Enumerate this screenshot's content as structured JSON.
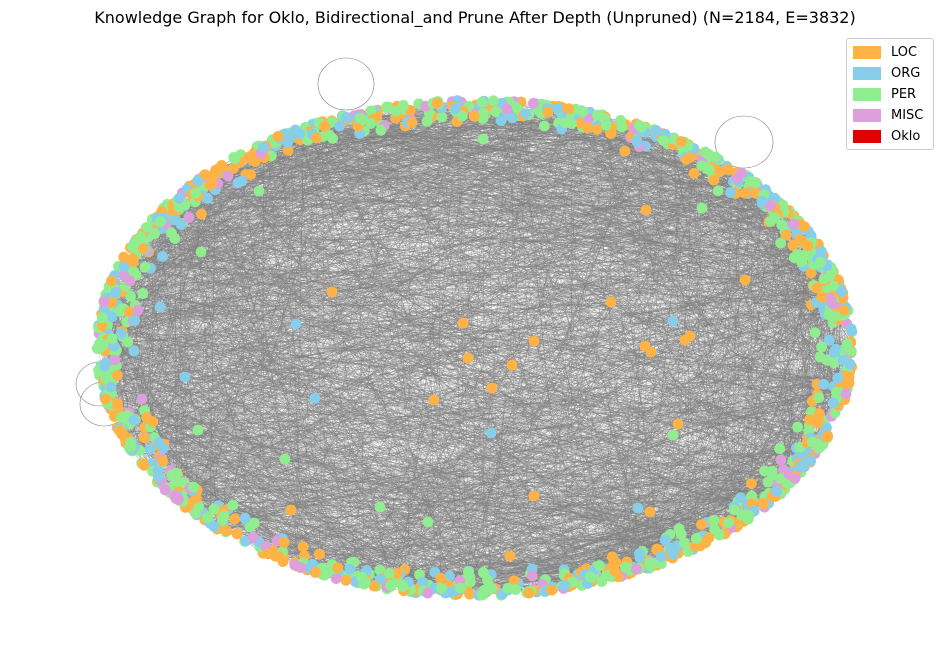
{
  "title": "Knowledge Graph for Oklo, Bidirectional_and Prune After Depth (Unpruned) (N=2184, E=3832)",
  "legend": {
    "items": [
      {
        "label": "LOC",
        "color": "#ffb347"
      },
      {
        "label": "ORG",
        "color": "#87ceeb"
      },
      {
        "label": "PER",
        "color": "#90ee90"
      },
      {
        "label": "MISC",
        "color": "#dda0dd"
      },
      {
        "label": "Oklo",
        "color": "#e00000"
      }
    ]
  },
  "graph": {
    "node_count": 2184,
    "edge_count": 3832,
    "edge_color": "#808080",
    "layout": "ellipse ring with sparse interior nodes"
  }
}
